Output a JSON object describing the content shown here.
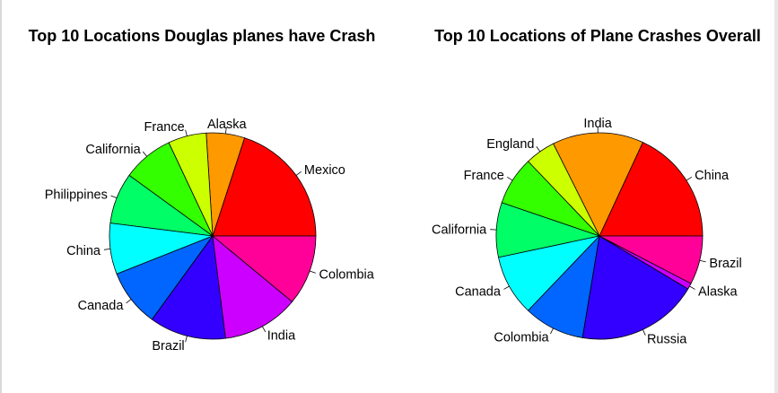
{
  "chart_data": [
    {
      "type": "pie",
      "title": "Top 10 Locations Douglas planes have Crash",
      "categories": [
        "Mexico",
        "Alaska",
        "France",
        "California",
        "Philippines",
        "China",
        "Canada",
        "Brazil",
        "India",
        "Colombia"
      ],
      "values": [
        20,
        6,
        6,
        8,
        8,
        8,
        9,
        12,
        12,
        11
      ],
      "colors": [
        "#FF0000",
        "#FF9900",
        "#CCFF00",
        "#33FF00",
        "#00FF66",
        "#00FFFF",
        "#0066FF",
        "#3300FF",
        "#CC00FF",
        "#FF0099"
      ]
    },
    {
      "type": "pie",
      "title": "Top 10 Locations of Plane Crashes Overall",
      "categories": [
        "China",
        "India",
        "England",
        "France",
        "California",
        "Canada",
        "Colombia",
        "Russia",
        "Alaska",
        "Brazil"
      ],
      "values": [
        19,
        15,
        5,
        8,
        9,
        10,
        10,
        20,
        1,
        8
      ],
      "colors": [
        "#FF0000",
        "#FF9900",
        "#CCFF00",
        "#33FF00",
        "#00FF66",
        "#00FFFF",
        "#0066FF",
        "#3300FF",
        "#CC00FF",
        "#FF0099"
      ]
    }
  ]
}
